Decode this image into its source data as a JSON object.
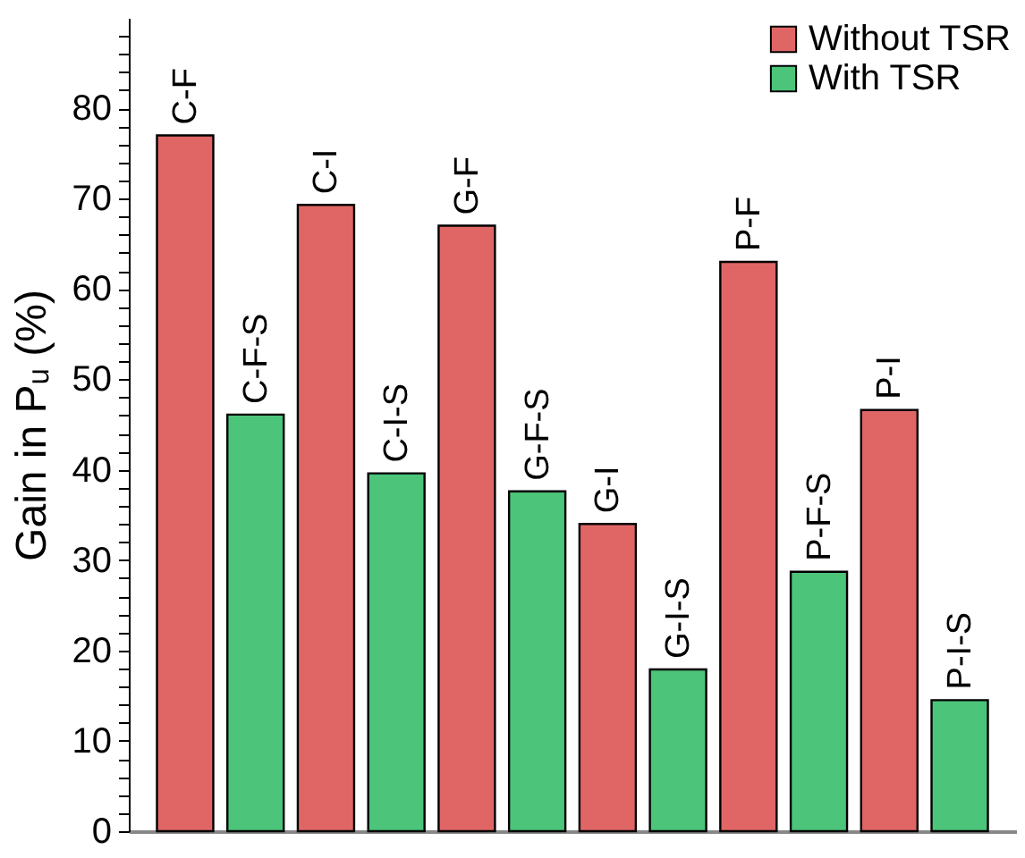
{
  "chart_data": {
    "type": "bar",
    "ylabel": "Gain in Pᵤ (%)",
    "categories": [
      "C-F",
      "C-F-S",
      "C-I",
      "C-I-S",
      "G-F",
      "G-F-S",
      "G-I",
      "G-I-S",
      "P-F",
      "P-F-S",
      "P-I",
      "P-I-S"
    ],
    "series": [
      {
        "name": "Without TSR",
        "color": "#e06666",
        "values": [
          77,
          null,
          69.3,
          null,
          67,
          null,
          34,
          null,
          63,
          null,
          46.6,
          null
        ]
      },
      {
        "name": "With TSR",
        "color": "#4cc47a",
        "values": [
          null,
          46.1,
          null,
          39.6,
          null,
          37.6,
          null,
          17.9,
          null,
          28.7,
          null,
          14.5
        ]
      }
    ],
    "ylim": [
      0,
      90
    ],
    "yticks": [
      0,
      {
        "value": 2,
        "label": null
      },
      {
        "value": 4,
        "label": null
      },
      {
        "value": 6,
        "label": null
      },
      {
        "value": 8,
        "label": null
      },
      10,
      {
        "value": 12,
        "label": null
      },
      {
        "value": 14,
        "label": null
      },
      {
        "value": 16,
        "label": null
      },
      {
        "value": 18,
        "label": null
      },
      20,
      {
        "value": 22,
        "label": null
      },
      {
        "value": 24,
        "label": null
      },
      {
        "value": 26,
        "label": null
      },
      {
        "value": 28,
        "label": null
      },
      30,
      {
        "value": 32,
        "label": null
      },
      {
        "value": 34,
        "label": null
      },
      {
        "value": 36,
        "label": null
      },
      {
        "value": 38,
        "label": null
      },
      40,
      {
        "value": 42,
        "label": null
      },
      {
        "value": 44,
        "label": null
      },
      {
        "value": 46,
        "label": null
      },
      {
        "value": 48,
        "label": null
      },
      50,
      {
        "value": 52,
        "label": null
      },
      {
        "value": 54,
        "label": null
      },
      {
        "value": 56,
        "label": null
      },
      {
        "value": 58,
        "label": null
      },
      60,
      {
        "value": 62,
        "label": null
      },
      {
        "value": 64,
        "label": null
      },
      {
        "value": 66,
        "label": null
      },
      {
        "value": 68,
        "label": null
      },
      70,
      {
        "value": 72,
        "label": null
      },
      {
        "value": 74,
        "label": null
      },
      {
        "value": 76,
        "label": null
      },
      {
        "value": 78,
        "label": null
      },
      80,
      {
        "value": 82,
        "label": null
      },
      {
        "value": 84,
        "label": null
      },
      {
        "value": 86,
        "label": null
      },
      {
        "value": 88,
        "label": null
      }
    ],
    "grid": false,
    "legend": "top right"
  }
}
